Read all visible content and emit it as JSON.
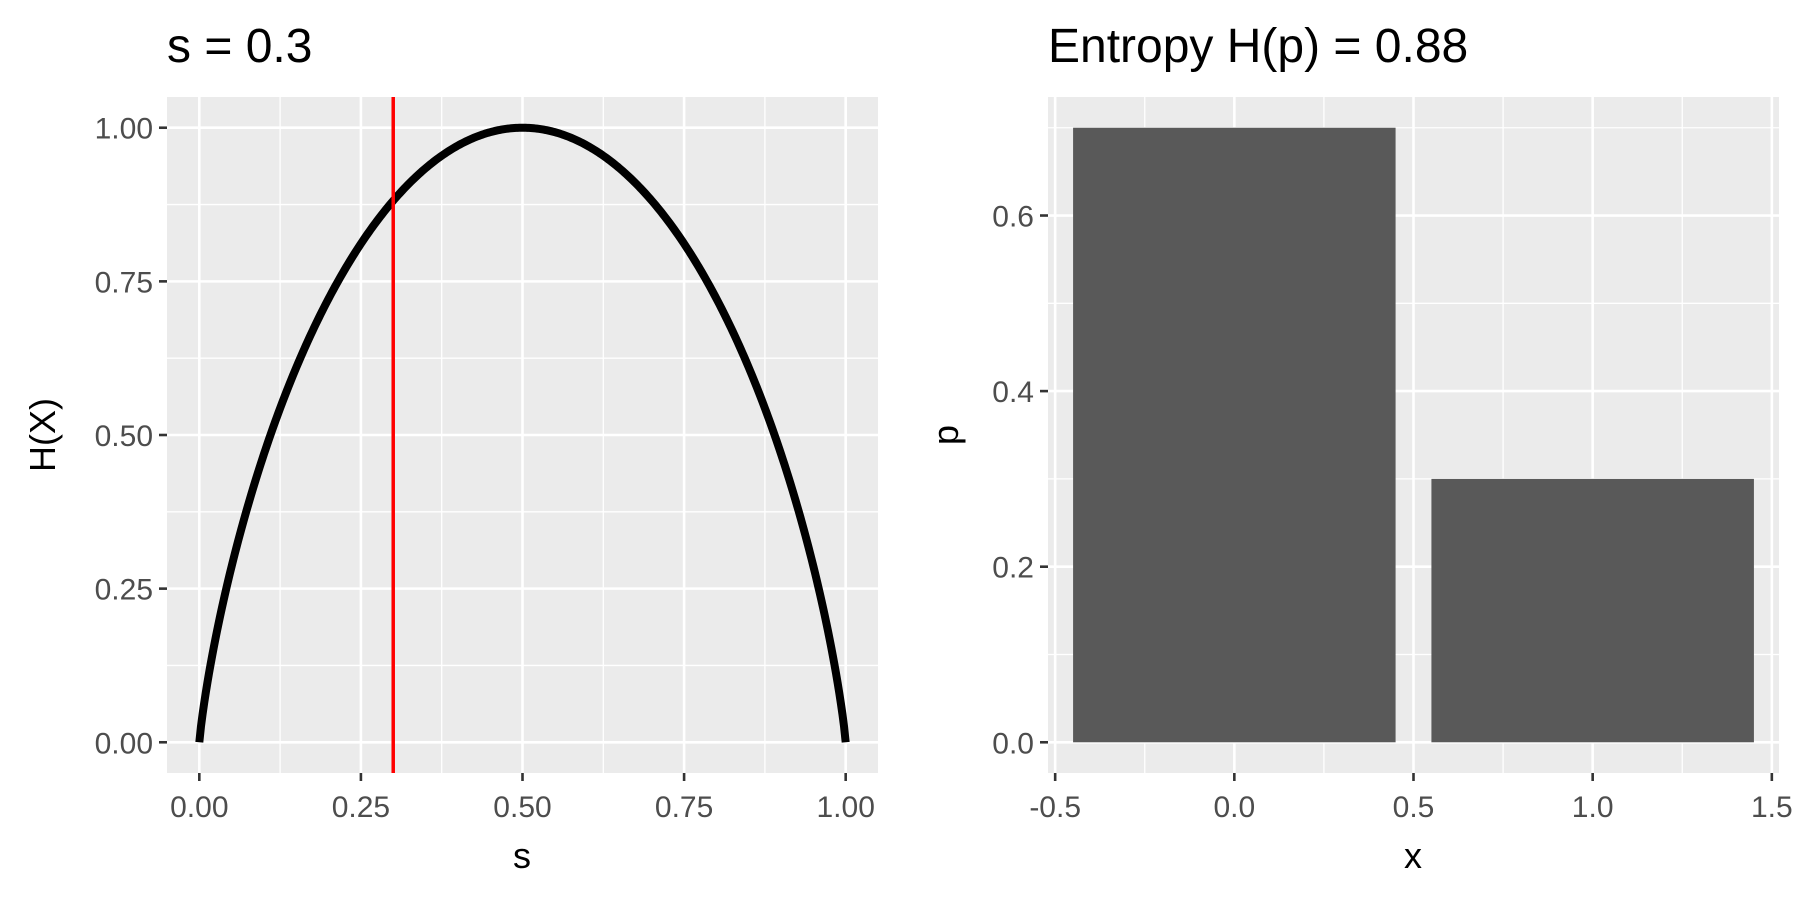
{
  "chart_data": [
    {
      "type": "line",
      "title": "s = 0.3",
      "xlabel": "s",
      "ylabel": "H(X)",
      "xlim": [
        -0.05,
        1.05
      ],
      "ylim": [
        -0.05,
        1.05
      ],
      "xticks": [
        0.0,
        0.25,
        0.5,
        0.75,
        1.0
      ],
      "xtick_labels": [
        "0.00",
        "0.25",
        "0.50",
        "0.75",
        "1.00"
      ],
      "yticks": [
        0.0,
        0.25,
        0.5,
        0.75,
        1.0
      ],
      "ytick_labels": [
        "0.00",
        "0.25",
        "0.50",
        "0.75",
        "1.00"
      ],
      "grid": true,
      "series": [
        {
          "x": [
            0.0,
            0.01,
            0.02,
            0.05,
            0.1,
            0.15,
            0.2,
            0.25,
            0.3,
            0.35,
            0.4,
            0.45,
            0.5,
            0.55,
            0.6,
            0.65,
            0.7,
            0.75,
            0.8,
            0.85,
            0.9,
            0.95,
            0.98,
            0.99,
            1.0
          ],
          "y": [
            0.0,
            0.081,
            0.141,
            0.286,
            0.469,
            0.61,
            0.722,
            0.811,
            0.881,
            0.934,
            0.971,
            0.993,
            1.0,
            0.993,
            0.971,
            0.934,
            0.881,
            0.811,
            0.722,
            0.61,
            0.469,
            0.286,
            0.141,
            0.081,
            0.0
          ],
          "color": "#000000"
        }
      ],
      "vline": {
        "x": 0.3,
        "color": "#FF0000"
      }
    },
    {
      "type": "bar",
      "title": "Entropy H(p) = 0.88",
      "xlabel": "x",
      "ylabel": "p",
      "categories": [
        0,
        1
      ],
      "values": [
        0.7,
        0.3
      ],
      "bar_width": 0.9,
      "bar_color": "#595959",
      "xlim": [
        -0.52,
        1.52
      ],
      "ylim": [
        -0.035,
        0.735
      ],
      "xticks": [
        -0.5,
        0.0,
        0.5,
        1.0,
        1.5
      ],
      "xtick_labels": [
        "-0.5",
        "0.0",
        "0.5",
        "1.0",
        "1.5"
      ],
      "yticks": [
        0.0,
        0.2,
        0.4,
        0.6
      ],
      "ytick_labels": [
        "0.0",
        "0.2",
        "0.4",
        "0.6"
      ],
      "grid": true
    }
  ]
}
